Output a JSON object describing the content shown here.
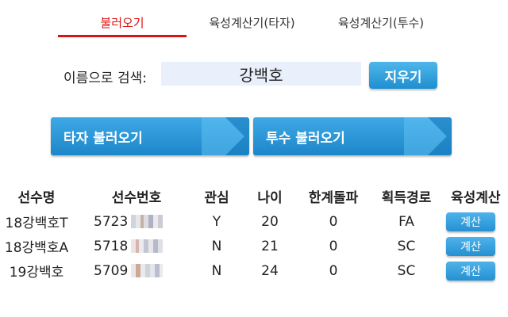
{
  "tabs": [
    {
      "label": "불러오기",
      "active": true
    },
    {
      "label": "육성계산기(타자)",
      "active": false
    },
    {
      "label": "육성계산기(투수)",
      "active": false
    }
  ],
  "search": {
    "label": "이름으로 검색:",
    "value": "강백호",
    "clear_label": "지우기"
  },
  "load_buttons": {
    "batter_label": "타자 불러오기",
    "pitcher_label": "투수 불러오기"
  },
  "table": {
    "headers": [
      "선수명",
      "선수번호",
      "관심",
      "나이",
      "한계돌파",
      "획득경로",
      "육성계산"
    ],
    "rows": [
      {
        "name": "18강백호T",
        "number": "5723",
        "watch": "Y",
        "age": "20",
        "limit_break": "0",
        "route": "FA",
        "calc_label": "계산"
      },
      {
        "name": "18강백호A",
        "number": "5718",
        "watch": "N",
        "age": "21",
        "limit_break": "0",
        "route": "SC",
        "calc_label": "계산"
      },
      {
        "name": "19강백호",
        "number": "5709",
        "watch": "N",
        "age": "24",
        "limit_break": "0",
        "route": "SC",
        "calc_label": "계산"
      }
    ]
  },
  "colors": {
    "accent_red": "#d81414",
    "button_blue": "#2590d2",
    "input_bg": "#e9f0fb"
  }
}
